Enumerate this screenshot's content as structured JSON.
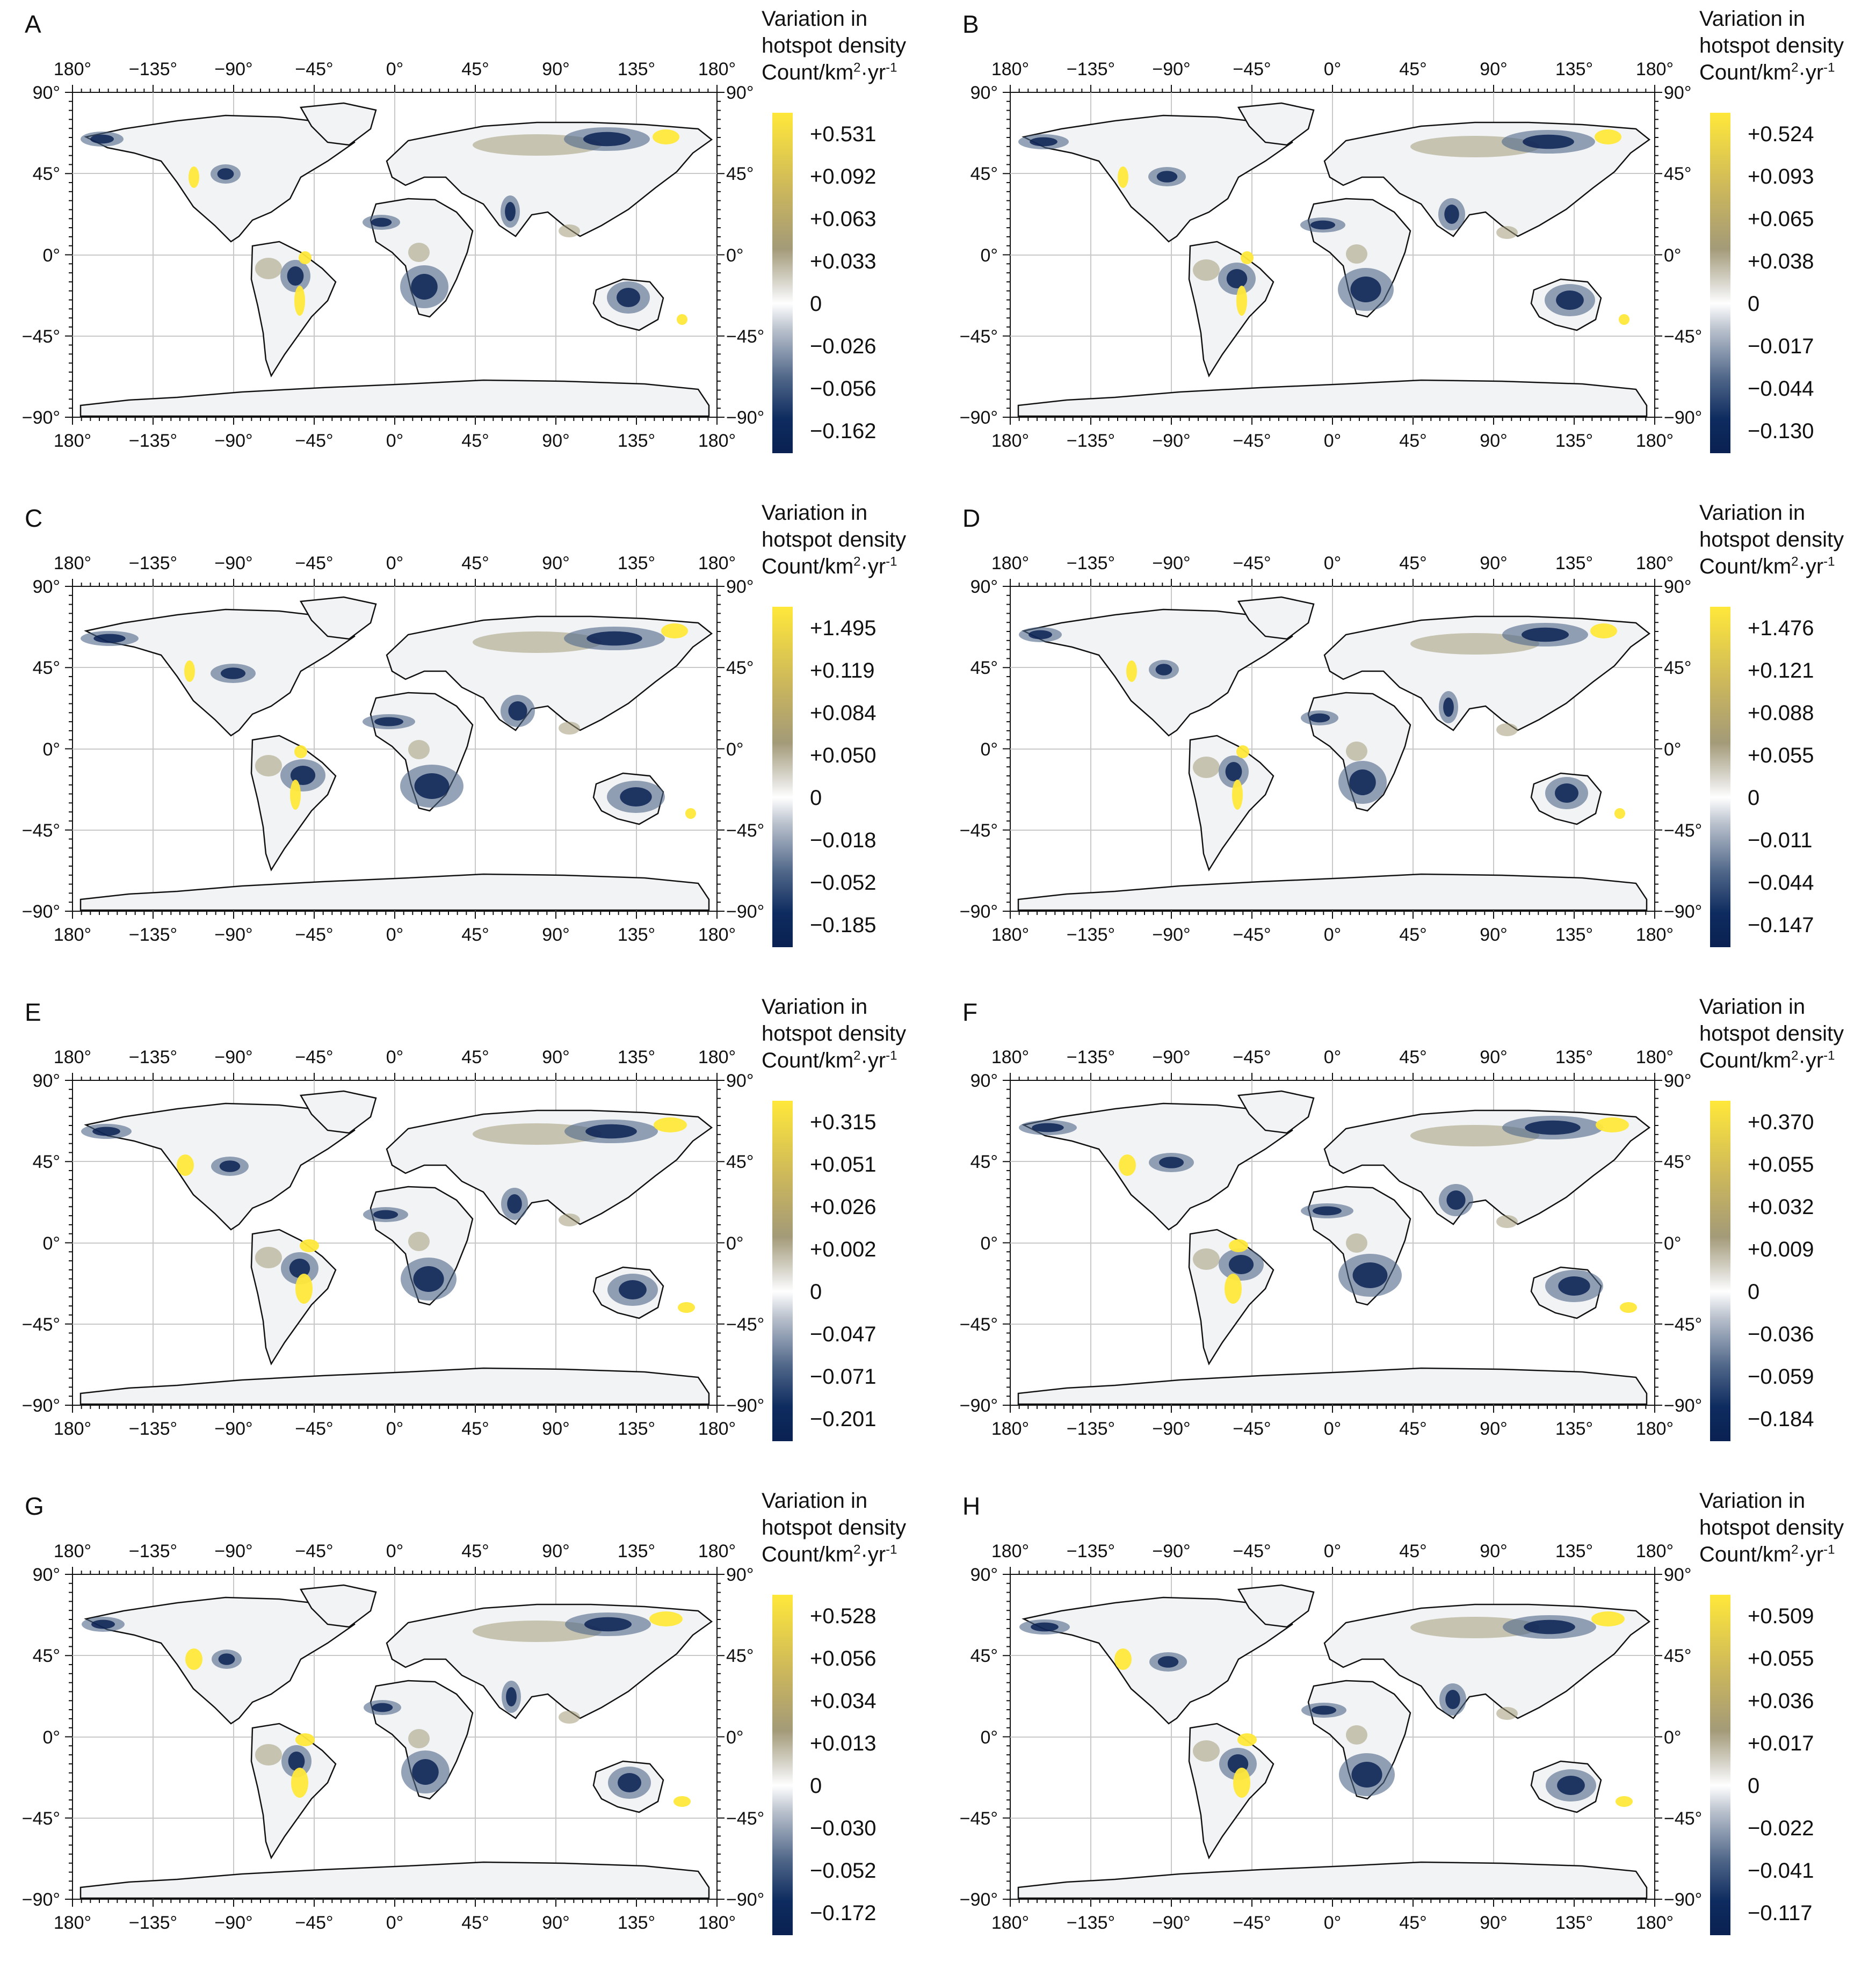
{
  "legend": {
    "title_line1": "Variation in",
    "title_line2": "hotspot density",
    "units_base": "Count/km",
    "units_exp1": "2",
    "units_mid": "·yr",
    "units_exp2": "-1"
  },
  "axes": {
    "lon_top": [
      "180°",
      "−135°",
      "−90°",
      "−45°",
      "0°",
      "45°",
      "90°",
      "135°",
      "180°"
    ],
    "lon_bottom": [
      "180°",
      "−135°",
      "−90°",
      "−45°",
      "0°",
      "45°",
      "90°",
      "135°",
      "180°"
    ],
    "lat_left": [
      "90°",
      "45°",
      "0°",
      "−45°",
      "−90°"
    ],
    "lat_right": [
      "90°",
      "45°",
      "0°",
      "−45°",
      "−90°"
    ]
  },
  "colors": {
    "positive_high": "#ffe83a",
    "positive_mid": "#a39a78",
    "zero": "#ffffff",
    "negative_mid": "#4f6688",
    "negative_low": "#0a2152",
    "coastline": "#111111",
    "gridline": "#c8c8c8"
  },
  "panels": [
    {
      "letter": "A",
      "ticks": [
        "+0.531",
        "+0.092",
        "+0.063",
        "+0.033",
        "0",
        "−0.026",
        "−0.056",
        "−0.162"
      ]
    },
    {
      "letter": "B",
      "ticks": [
        "+0.524",
        "+0.093",
        "+0.065",
        "+0.038",
        "0",
        "−0.017",
        "−0.044",
        "−0.130"
      ]
    },
    {
      "letter": "C",
      "ticks": [
        "+1.495",
        "+0.119",
        "+0.084",
        "+0.050",
        "0",
        "−0.018",
        "−0.052",
        "−0.185"
      ]
    },
    {
      "letter": "D",
      "ticks": [
        "+1.476",
        "+0.121",
        "+0.088",
        "+0.055",
        "0",
        "−0.011",
        "−0.044",
        "−0.147"
      ]
    },
    {
      "letter": "E",
      "ticks": [
        "+0.315",
        "+0.051",
        "+0.026",
        "+0.002",
        "0",
        "−0.047",
        "−0.071",
        "−0.201"
      ]
    },
    {
      "letter": "F",
      "ticks": [
        "+0.370",
        "+0.055",
        "+0.032",
        "+0.009",
        "0",
        "−0.036",
        "−0.059",
        "−0.184"
      ]
    },
    {
      "letter": "G",
      "ticks": [
        "+0.528",
        "+0.056",
        "+0.034",
        "+0.013",
        "0",
        "−0.030",
        "−0.052",
        "−0.172"
      ]
    },
    {
      "letter": "H",
      "ticks": [
        "+0.509",
        "+0.055",
        "+0.036",
        "+0.017",
        "0",
        "−0.022",
        "−0.041",
        "−0.117"
      ]
    }
  ]
}
